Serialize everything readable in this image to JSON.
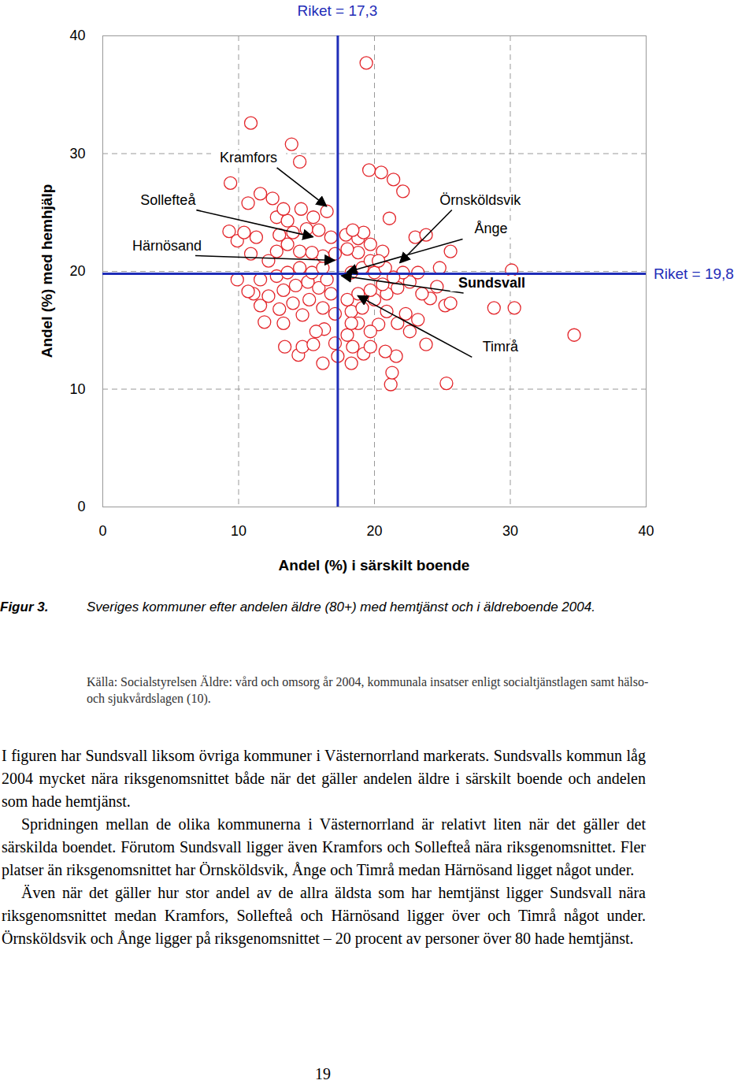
{
  "chart_data": {
    "type": "scatter",
    "xlabel": "Andel (%) i särskilt boende",
    "ylabel": "Andel (%) med hemhjälp",
    "x": [
      19.4,
      10.9,
      13.9,
      14.5,
      9.4,
      19.6,
      20.5,
      21.4,
      22.1,
      11.6,
      12.5,
      10.7,
      21.1,
      23.0,
      23.8,
      25.6,
      24.8,
      30.1,
      28.8,
      30.3,
      34.7,
      25.2,
      25.6,
      25.3,
      21.2,
      21.3,
      21.6,
      14.4,
      17.3,
      18.3,
      19.2,
      20.8,
      23.8,
      11.6,
      9.3,
      9.9,
      11.3,
      10.4,
      10.9,
      11.6,
      11.1,
      12.2,
      11.9,
      13.3,
      13.0,
      13.4,
      14.7,
      15.5,
      16.3,
      24.1,
      24.6,
      23.2,
      22.6,
      22.3,
      21.7,
      20.9,
      20.3,
      19.7,
      18.8,
      18.0,
      17.1,
      15.7,
      14.7,
      14.0,
      15.2,
      16.2,
      17.1,
      18.3,
      19.1,
      20.0,
      20.9,
      21.7,
      22.6,
      23.5,
      23.2,
      22.1,
      21.4,
      20.6,
      19.7,
      18.8,
      18.0,
      16.8,
      15.9,
      15.1,
      14.2,
      13.3,
      12.8,
      13.6,
      14.5,
      15.4,
      16.2,
      16.5,
      18.3,
      19.1,
      20.0,
      20.8,
      19.7,
      18.8,
      18.0,
      17.1,
      16.2,
      15.4,
      14.5,
      13.6,
      12.8,
      12.2,
      13.0,
      14.0,
      15.0,
      15.9,
      16.8,
      17.9,
      18.8,
      19.7,
      20.6,
      20.3,
      19.2,
      18.4,
      12.8,
      13.6,
      14.6,
      15.5,
      16.5,
      13.3,
      9.9,
      10.7,
      18.4,
      19.7,
      18.3,
      16.2
    ],
    "values": [
      37.7,
      32.6,
      30.8,
      29.3,
      27.5,
      28.6,
      28.4,
      27.8,
      26.8,
      26.6,
      26.2,
      25.8,
      24.5,
      22.9,
      23.1,
      21.7,
      20.3,
      20.1,
      16.9,
      16.9,
      14.6,
      17.1,
      17.3,
      10.5,
      10.4,
      11.4,
      12.8,
      12.9,
      12.8,
      12.2,
      13.0,
      13.2,
      13.8,
      19.3,
      23.4,
      22.6,
      22.9,
      23.3,
      21.5,
      17.1,
      18.1,
      17.9,
      15.7,
      15.6,
      16.8,
      13.6,
      13.6,
      13.8,
      15.1,
      17.7,
      18.7,
      15.9,
      14.9,
      16.4,
      15.6,
      16.6,
      15.5,
      14.9,
      15.6,
      14.6,
      13.9,
      14.9,
      16.3,
      17.3,
      17.6,
      16.9,
      16.4,
      16.6,
      16.9,
      17.6,
      18.1,
      18.6,
      19.1,
      18.1,
      19.9,
      19.9,
      19.5,
      18.9,
      18.4,
      18.1,
      17.6,
      18.1,
      18.6,
      19.1,
      18.8,
      18.4,
      19.6,
      19.9,
      20.3,
      19.9,
      20.3,
      19.3,
      19.9,
      20.3,
      19.9,
      20.3,
      20.9,
      21.6,
      21.9,
      21.5,
      21.3,
      21.6,
      21.7,
      22.3,
      21.7,
      20.9,
      23.1,
      23.3,
      23.6,
      23.5,
      22.9,
      23.1,
      22.8,
      22.3,
      21.7,
      20.9,
      23.3,
      23.5,
      24.6,
      24.3,
      25.3,
      24.6,
      25.1,
      25.3,
      19.3,
      18.3,
      13.6,
      13.6,
      15.6,
      12.2
    ],
    "color": "#e3262b",
    "marker": "circle",
    "xlim": [
      0,
      40
    ],
    "ylim": [
      0,
      40
    ],
    "xticks": [
      0,
      10,
      20,
      30,
      40
    ],
    "yticks": [
      0,
      10,
      20,
      30,
      40
    ],
    "grid": true,
    "reference_lines": [
      {
        "axis": "x",
        "value": 17.3,
        "label": "Riket = 17,3",
        "color": "#1f2db8"
      },
      {
        "axis": "y",
        "value": 19.8,
        "label": "Riket = 19,8",
        "color": "#1f2db8"
      }
    ],
    "annotations": [
      {
        "text": "Kramfors",
        "x": 16.5,
        "y": 25.5
      },
      {
        "text": "Sollefteå",
        "x": 15.5,
        "y": 22.9
      },
      {
        "text": "Härnösand",
        "x": 17.1,
        "y": 20.9
      },
      {
        "text": "Örnsköldsvik",
        "x": 21.9,
        "y": 20.7
      },
      {
        "text": "Ånge",
        "x": 18.0,
        "y": 19.9
      },
      {
        "text": "Sundsvall",
        "x": 17.6,
        "y": 19.6
      },
      {
        "text": "Timrå",
        "x": 18.8,
        "y": 17.9
      }
    ]
  },
  "document": {
    "caption": {
      "label": "Figur 3.",
      "text": "Sveriges kommuner efter andelen äldre (80+) med hemtjänst och i äldreboende 2004."
    },
    "source": "Källa: Socialstyrelsen Äldre: vård och omsorg år 2004, kommunala insatser enligt socialtjänstlagen samt hälso- och sjukvårdslagen (10).",
    "paragraphs": [
      "I figuren har Sundsvall liksom övriga kommuner i Västernorrland markerats. Sundsvalls kommun låg 2004 mycket nära riksgenomsnittet både när det gäller andelen äldre i särskilt boende och andelen som hade hemtjänst.",
      "Spridningen mellan de olika kommunerna i Västernorrland är relativt liten när det gäller det särskilda boendet. Förutom Sundsvall ligger även Kramfors och Sollefteå nära riksgenomsnittet. Fler platser än riksgenomsnittet har Örnsköldsvik, Ånge och Timrå medan Härnösand ligget något under.",
      "Även när det gäller hur stor andel av de allra äldsta som har hemtjänst ligger Sundsvall nära riksgenomsnittet medan Kramfors, Sollefteå och Härnösand ligger över och Timrå något under. Örnsköldsvik och Ånge ligger på riksgenomsnittet – 20 procent av personer över 80 hade hemtjänst."
    ],
    "page_number": "19"
  }
}
